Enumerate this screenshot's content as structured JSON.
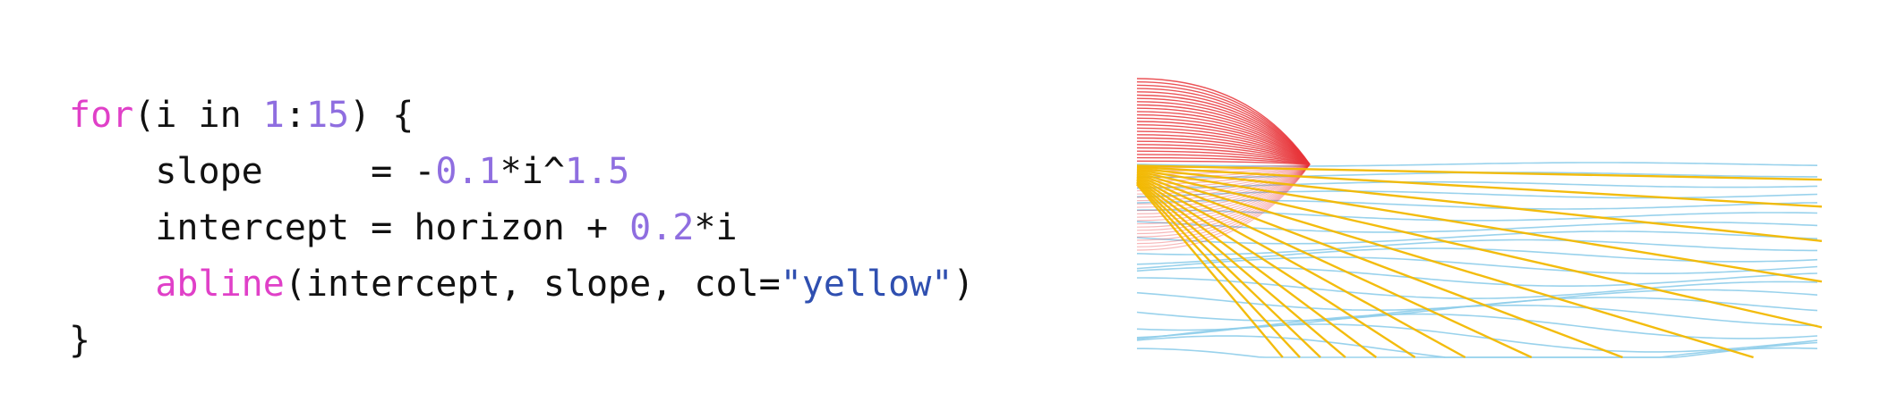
{
  "code": {
    "lines": [
      [
        {
          "text": "for",
          "color": "#e040c8"
        },
        {
          "text": "(i in ",
          "color": "#111111"
        },
        {
          "text": "1",
          "color": "#8f6ee0"
        },
        {
          "text": ":",
          "color": "#111111"
        },
        {
          "text": "15",
          "color": "#8f6ee0"
        },
        {
          "text": ") {",
          "color": "#111111"
        }
      ],
      [
        {
          "text": "    slope     = -",
          "color": "#111111"
        },
        {
          "text": "0.1",
          "color": "#8f6ee0"
        },
        {
          "text": "*i^",
          "color": "#111111"
        },
        {
          "text": "1.5",
          "color": "#8f6ee0"
        }
      ],
      [
        {
          "text": "    intercept = horizon + ",
          "color": "#111111"
        },
        {
          "text": "0.2",
          "color": "#8f6ee0"
        },
        {
          "text": "*i",
          "color": "#111111"
        }
      ],
      [
        {
          "text": "    ",
          "color": "#111111"
        },
        {
          "text": "abline",
          "color": "#e040c8"
        },
        {
          "text": "(intercept, slope, col=",
          "color": "#111111"
        },
        {
          "text": "\"yellow\"",
          "color": "#2f4fb0"
        },
        {
          "text": ")",
          "color": "#111111"
        }
      ],
      [
        {
          "text": "}",
          "color": "#111111"
        }
      ]
    ]
  }
}
